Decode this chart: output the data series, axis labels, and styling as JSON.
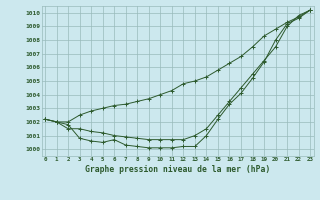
{
  "xlabel": "Graphe pression niveau de la mer (hPa)",
  "background_color": "#cce8ee",
  "grid_color": "#99bbbb",
  "line_color": "#2d5a2d",
  "ylim": [
    999.5,
    1010.5
  ],
  "xlim": [
    -0.3,
    23.3
  ],
  "yticks": [
    1000,
    1001,
    1002,
    1003,
    1004,
    1005,
    1006,
    1007,
    1008,
    1009,
    1010
  ],
  "xticks": [
    0,
    1,
    2,
    3,
    4,
    5,
    6,
    7,
    8,
    9,
    10,
    11,
    12,
    13,
    14,
    15,
    16,
    17,
    18,
    19,
    20,
    21,
    22,
    23
  ],
  "series1": [
    1002.2,
    1002.0,
    1001.8,
    1000.8,
    1000.6,
    1000.5,
    1000.7,
    1000.3,
    1000.2,
    1000.1,
    1000.1,
    1000.1,
    1000.2,
    1000.2,
    1001.0,
    1002.2,
    1003.3,
    1004.1,
    1005.2,
    1006.4,
    1008.0,
    1009.2,
    1009.6,
    1010.2
  ],
  "series2": [
    1002.2,
    1002.0,
    1001.5,
    1001.5,
    1001.3,
    1001.2,
    1001.0,
    1000.9,
    1000.8,
    1000.7,
    1000.7,
    1000.7,
    1000.7,
    1001.0,
    1001.5,
    1002.5,
    1003.5,
    1004.5,
    1005.5,
    1006.5,
    1007.5,
    1009.0,
    1009.8,
    1010.2
  ],
  "series3": [
    1002.2,
    1002.0,
    1002.0,
    1002.5,
    1002.8,
    1003.0,
    1003.2,
    1003.3,
    1003.5,
    1003.7,
    1004.0,
    1004.3,
    1004.8,
    1005.0,
    1005.3,
    1005.8,
    1006.3,
    1006.8,
    1007.5,
    1008.3,
    1008.8,
    1009.3,
    1009.7,
    1010.2
  ]
}
